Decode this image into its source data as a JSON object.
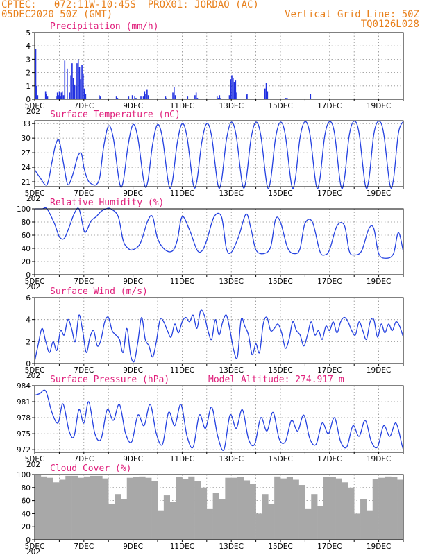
{
  "header": {
    "line1": "CPTEC:   072:11W-10:45S  PROX01: JORDAO (AC)",
    "line2": "05DEC2020 50Z (GMT)",
    "grid_note": "Vertical Grid Line: 50Z",
    "code": "TQ0126L028"
  },
  "colors": {
    "header": "#e8801c",
    "title": "#e0207c",
    "line": "#2340e0",
    "bar": "#2030e0",
    "cloud": "#a8a8a8"
  },
  "x_axis": {
    "start_label": "5DEC",
    "tick_labels": [
      "5DEC",
      "7DEC",
      "9DEC",
      "11DEC",
      "13DEC",
      "15DEC",
      "17DEC",
      "19DEC"
    ],
    "tick_days": [
      5,
      7,
      9,
      11,
      13,
      15,
      17,
      19
    ],
    "range": [
      5,
      20
    ],
    "year_stub": "202"
  },
  "chart_data": [
    {
      "type": "bar",
      "title": "Precipitation (mm/h)",
      "ylim": [
        0,
        5
      ],
      "yticks": [
        0,
        1,
        2,
        3,
        4,
        5
      ],
      "x": [
        5.02,
        5.06,
        5.1,
        5.42,
        5.46,
        5.5,
        5.85,
        5.9,
        5.94,
        5.98,
        6.02,
        6.06,
        6.1,
        6.15,
        6.2,
        6.3,
        6.4,
        6.45,
        6.5,
        6.55,
        6.6,
        6.66,
        6.7,
        6.75,
        6.8,
        6.85,
        6.9,
        6.95,
        7.0,
        7.05,
        7.6,
        7.65,
        8.3,
        8.35,
        8.8,
        8.95,
        9.05,
        9.1,
        9.3,
        9.4,
        9.45,
        9.5,
        9.55,
        9.6,
        10.3,
        10.35,
        10.6,
        10.65,
        10.7,
        11.2,
        11.5,
        11.55,
        11.6,
        12.4,
        12.45,
        12.5,
        12.55,
        12.9,
        12.95,
        13.0,
        13.05,
        13.1,
        13.15,
        13.2,
        13.6,
        13.62,
        14.35,
        14.4,
        14.45,
        15.2,
        15.25,
        16.2
      ],
      "values": [
        3.8,
        1.0,
        0.3,
        0.6,
        0.4,
        0.2,
        0.2,
        0.5,
        0.3,
        0.6,
        0.2,
        0.5,
        0.6,
        0.3,
        2.9,
        2.3,
        0.5,
        1.8,
        2.7,
        1.6,
        1.1,
        1.0,
        2.7,
        3.0,
        2.4,
        1.5,
        2.6,
        1.9,
        0.8,
        0.4,
        0.3,
        0.2,
        0.2,
        0.1,
        0.2,
        0.3,
        0.2,
        0.1,
        0.2,
        0.2,
        0.6,
        0.4,
        0.7,
        0.3,
        0.2,
        0.1,
        0.5,
        0.9,
        0.3,
        0.2,
        0.3,
        0.5,
        0.1,
        0.2,
        0.1,
        0.3,
        0.1,
        0.3,
        1.5,
        1.8,
        1.6,
        1.3,
        1.4,
        0.5,
        0.3,
        0.4,
        0.8,
        1.2,
        0.6,
        0.1,
        0.1,
        0.4
      ]
    },
    {
      "type": "line",
      "title": "Surface Temperature (nC)",
      "ylim": [
        20,
        33.6
      ],
      "yticks": [
        21,
        24,
        27,
        30,
        33
      ],
      "x": [
        5.0,
        5.2,
        5.5,
        5.7,
        5.85,
        6.0,
        6.2,
        6.35,
        6.55,
        6.75,
        6.9,
        7.0,
        7.15,
        7.3,
        7.5,
        7.65,
        7.8,
        8.0,
        8.2,
        8.45,
        8.6,
        8.8,
        9.0,
        9.2,
        9.45,
        9.6,
        9.8,
        10.0,
        10.2,
        10.45,
        10.6,
        10.8,
        11.0,
        11.2,
        11.45,
        11.6,
        11.8,
        12.0,
        12.2,
        12.45,
        12.6,
        12.8,
        13.0,
        13.2,
        13.45,
        13.6,
        13.8,
        14.0,
        14.2,
        14.45,
        14.6,
        14.8,
        15.0,
        15.2,
        15.45,
        15.6,
        15.8,
        16.0,
        16.2,
        16.45,
        16.6,
        16.8,
        17.0,
        17.2,
        17.45,
        17.6,
        17.8,
        18.0,
        18.2,
        18.45,
        18.6,
        18.8,
        19.0,
        19.2,
        19.45,
        19.6,
        19.8,
        20.0
      ],
      "values": [
        23.5,
        22.0,
        20.4,
        25.0,
        28.6,
        29.4,
        24.0,
        20.4,
        22.5,
        26.2,
        26.8,
        24.0,
        21.5,
        20.6,
        20.4,
        22.0,
        28.0,
        32.5,
        30.0,
        20.8,
        21.0,
        28.5,
        32.8,
        30.0,
        20.8,
        21.0,
        28.8,
        32.8,
        30.0,
        20.5,
        21.0,
        29.0,
        33.0,
        30.2,
        20.5,
        21.2,
        29.2,
        33.0,
        30.4,
        20.5,
        21.2,
        29.6,
        33.3,
        30.5,
        20.5,
        21.3,
        29.8,
        33.3,
        30.6,
        20.4,
        21.3,
        30.0,
        33.3,
        30.6,
        20.4,
        21.4,
        30.2,
        33.4,
        30.8,
        20.4,
        21.4,
        30.4,
        33.4,
        31.0,
        20.4,
        21.5,
        30.6,
        33.5,
        31.0,
        20.4,
        21.5,
        30.8,
        33.5,
        31.0,
        20.5,
        21.5,
        31.0,
        33.5
      ]
    },
    {
      "type": "line",
      "title": "Relative Humidity (%)",
      "ylim": [
        0,
        100
      ],
      "yticks": [
        0,
        20,
        40,
        60,
        80,
        100
      ],
      "x": [
        5.0,
        5.3,
        5.5,
        5.8,
        6.0,
        6.2,
        6.4,
        6.6,
        6.8,
        7.0,
        7.1,
        7.3,
        7.5,
        7.7,
        7.9,
        8.1,
        8.4,
        8.6,
        8.8,
        9.0,
        9.3,
        9.6,
        9.8,
        10.0,
        10.3,
        10.6,
        10.8,
        11.0,
        11.3,
        11.6,
        11.8,
        12.0,
        12.3,
        12.6,
        12.8,
        13.0,
        13.3,
        13.6,
        13.8,
        14.0,
        14.3,
        14.6,
        14.8,
        15.0,
        15.3,
        15.6,
        15.8,
        16.0,
        16.3,
        16.6,
        16.8,
        17.0,
        17.3,
        17.6,
        17.8,
        18.0,
        18.3,
        18.6,
        18.8,
        19.0,
        19.3,
        19.6,
        19.8,
        20.0
      ],
      "values": [
        100,
        100,
        100,
        78,
        58,
        55,
        72,
        92,
        100,
        68,
        66,
        82,
        88,
        96,
        100,
        100,
        88,
        52,
        40,
        38,
        48,
        82,
        88,
        55,
        38,
        36,
        52,
        88,
        68,
        38,
        36,
        52,
        88,
        88,
        40,
        34,
        58,
        92,
        70,
        38,
        32,
        42,
        84,
        80,
        40,
        32,
        40,
        78,
        80,
        36,
        30,
        38,
        74,
        75,
        36,
        30,
        36,
        70,
        70,
        32,
        25,
        32,
        64,
        35
      ]
    },
    {
      "type": "line",
      "title": "Surface Wind (m/s)",
      "ylim": [
        0,
        6
      ],
      "yticks": [
        0,
        2,
        4,
        6
      ],
      "x": [
        5.0,
        5.15,
        5.3,
        5.45,
        5.6,
        5.75,
        5.9,
        6.05,
        6.2,
        6.35,
        6.5,
        6.65,
        6.8,
        6.95,
        7.1,
        7.25,
        7.4,
        7.55,
        7.7,
        7.85,
        8.0,
        8.15,
        8.3,
        8.45,
        8.6,
        8.75,
        8.9,
        9.05,
        9.2,
        9.35,
        9.5,
        9.65,
        9.8,
        9.95,
        10.1,
        10.25,
        10.4,
        10.55,
        10.7,
        10.85,
        11.0,
        11.15,
        11.3,
        11.45,
        11.6,
        11.75,
        11.9,
        12.05,
        12.2,
        12.35,
        12.5,
        12.65,
        12.8,
        12.95,
        13.1,
        13.25,
        13.4,
        13.55,
        13.7,
        13.85,
        14.0,
        14.15,
        14.3,
        14.45,
        14.6,
        14.75,
        14.9,
        15.05,
        15.2,
        15.35,
        15.5,
        15.65,
        15.8,
        15.95,
        16.1,
        16.25,
        16.4,
        16.55,
        16.7,
        16.85,
        17.0,
        17.15,
        17.3,
        17.45,
        17.6,
        17.75,
        17.9,
        18.05,
        18.2,
        18.35,
        18.5,
        18.65,
        18.8,
        18.95,
        19.1,
        19.25,
        19.4,
        19.55,
        19.7,
        19.85,
        20.0
      ],
      "values": [
        0.2,
        1.8,
        3.2,
        2.0,
        1.0,
        2.0,
        1.2,
        3.0,
        2.6,
        4.0,
        3.2,
        2.0,
        4.4,
        3.0,
        1.0,
        2.4,
        3.0,
        1.6,
        2.2,
        3.8,
        4.2,
        3.0,
        2.6,
        2.2,
        1.0,
        3.2,
        0.8,
        0.2,
        2.0,
        4.2,
        2.2,
        1.6,
        0.6,
        2.0,
        4.0,
        3.8,
        3.0,
        2.4,
        3.6,
        2.8,
        3.8,
        4.2,
        3.8,
        4.4,
        3.2,
        4.8,
        4.4,
        3.0,
        2.2,
        4.0,
        2.6,
        3.8,
        4.4,
        3.0,
        1.2,
        0.6,
        4.0,
        3.4,
        2.6,
        0.8,
        1.8,
        1.0,
        3.6,
        4.2,
        3.0,
        3.2,
        3.6,
        2.8,
        1.4,
        2.2,
        3.8,
        3.0,
        2.6,
        1.6,
        2.6,
        3.8,
        2.6,
        3.0,
        2.2,
        3.4,
        3.0,
        3.8,
        2.8,
        3.8,
        4.2,
        3.8,
        3.0,
        2.6,
        3.8,
        3.0,
        2.2,
        3.8,
        4.0,
        2.4,
        3.6,
        2.8,
        3.6,
        3.0,
        3.8,
        3.4,
        2.4
      ]
    },
    {
      "type": "line",
      "title": "Surface Pressure (hPa)",
      "subtitle": "Model Altitude: 274.917 m",
      "ylim": [
        971.5,
        984
      ],
      "yticks": [
        972,
        975,
        978,
        981,
        984
      ],
      "x": [
        5.0,
        5.2,
        5.45,
        5.7,
        5.95,
        6.15,
        6.4,
        6.6,
        6.8,
        7.0,
        7.2,
        7.45,
        7.7,
        7.95,
        8.2,
        8.45,
        8.7,
        8.95,
        9.2,
        9.45,
        9.7,
        9.95,
        10.2,
        10.45,
        10.7,
        10.95,
        11.2,
        11.45,
        11.7,
        11.95,
        12.2,
        12.45,
        12.7,
        12.95,
        13.2,
        13.45,
        13.7,
        13.95,
        14.2,
        14.45,
        14.7,
        14.95,
        15.2,
        15.45,
        15.7,
        15.95,
        16.2,
        16.45,
        16.7,
        16.95,
        17.2,
        17.45,
        17.7,
        17.95,
        18.2,
        18.45,
        18.7,
        18.95,
        19.2,
        19.45,
        19.7,
        19.95,
        20.0
      ],
      "values": [
        982.2,
        982.5,
        983.0,
        979.0,
        977.0,
        980.6,
        975.5,
        974.5,
        979.5,
        977.0,
        981.0,
        975.0,
        974.0,
        979.5,
        977.5,
        980.5,
        975.0,
        973.5,
        978.5,
        976.5,
        980.5,
        975.0,
        973.0,
        979.0,
        976.5,
        980.5,
        974.5,
        972.5,
        978.5,
        976.0,
        980.0,
        974.5,
        972.0,
        978.5,
        976.0,
        979.5,
        974.0,
        973.0,
        978.0,
        975.5,
        979.0,
        974.0,
        973.5,
        977.5,
        975.5,
        978.5,
        974.0,
        973.0,
        977.0,
        975.0,
        978.0,
        973.5,
        972.5,
        976.5,
        974.5,
        977.5,
        973.5,
        972.5,
        976.5,
        974.5,
        977.0,
        972.8,
        972.0
      ]
    },
    {
      "type": "bar",
      "title": "Cloud Cover (%)",
      "ylim": [
        0,
        100
      ],
      "yticks": [
        0,
        20,
        40,
        60,
        80,
        100
      ],
      "x": [
        5.0,
        5.25,
        5.5,
        5.75,
        6.0,
        6.25,
        6.5,
        6.75,
        7.0,
        7.25,
        7.5,
        7.75,
        8.0,
        8.25,
        8.5,
        8.75,
        9.0,
        9.25,
        9.5,
        9.75,
        10.0,
        10.25,
        10.5,
        10.75,
        11.0,
        11.25,
        11.5,
        11.75,
        12.0,
        12.25,
        12.5,
        12.75,
        13.0,
        13.25,
        13.5,
        13.75,
        14.0,
        14.25,
        14.5,
        14.75,
        15.0,
        15.25,
        15.5,
        15.75,
        16.0,
        16.25,
        16.5,
        16.75,
        17.0,
        17.25,
        17.5,
        17.75,
        18.0,
        18.25,
        18.5,
        18.75,
        19.0,
        19.25,
        19.5,
        19.75
      ],
      "values": [
        100,
        97,
        95,
        88,
        92,
        98,
        98,
        95,
        97,
        98,
        98,
        94,
        55,
        70,
        62,
        95,
        96,
        97,
        95,
        90,
        45,
        68,
        58,
        96,
        93,
        97,
        90,
        80,
        48,
        72,
        62,
        95,
        95,
        96,
        91,
        86,
        40,
        70,
        55,
        97,
        94,
        96,
        92,
        84,
        48,
        70,
        52,
        96,
        96,
        94,
        88,
        80,
        40,
        62,
        45,
        93,
        95,
        97,
        96,
        92
      ]
    }
  ]
}
